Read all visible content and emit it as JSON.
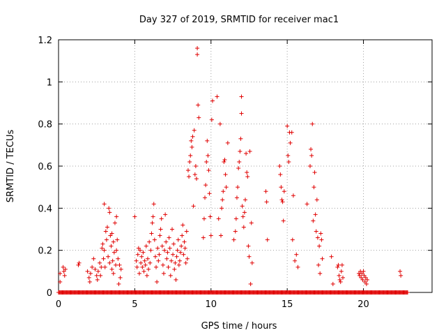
{
  "chart_data": {
    "type": "scatter",
    "title": "Day 327 of 2019, SRMTID for receiver mac1",
    "xlabel": "GPS time / hours",
    "ylabel": "SRMTID / TECUs",
    "xlim": [
      0,
      24.5
    ],
    "ylim": [
      0,
      1.2
    ],
    "x_ticks": [
      0,
      5,
      10,
      15,
      20
    ],
    "x_tick_labels": [
      "0",
      "5",
      "10",
      "15",
      "20"
    ],
    "y_ticks": [
      0,
      0.2,
      0.4,
      0.6,
      0.8,
      1.0,
      1.2
    ],
    "y_tick_labels": [
      "0",
      "0.2",
      "0.4",
      "0.6",
      "0.8",
      "1",
      "1.2"
    ],
    "grid": true,
    "marker": "plus",
    "color": "#e00000",
    "series": [
      {
        "name": "SRMTID",
        "points": [
          [
            0.1,
            0.05
          ],
          [
            0.1,
            0.09
          ],
          [
            0.3,
            0.12
          ],
          [
            0.35,
            0.1
          ],
          [
            0.4,
            0.08
          ],
          [
            0.45,
            0.11
          ],
          [
            1.3,
            0.13
          ],
          [
            1.35,
            0.14
          ],
          [
            1.9,
            0.1
          ],
          [
            2.0,
            0.07
          ],
          [
            2.05,
            0.05
          ],
          [
            2.1,
            0.09
          ],
          [
            2.2,
            0.12
          ],
          [
            2.3,
            0.16
          ],
          [
            2.4,
            0.11
          ],
          [
            2.5,
            0.08
          ],
          [
            2.55,
            0.06
          ],
          [
            2.6,
            0.1
          ],
          [
            2.7,
            0.14
          ],
          [
            2.75,
            0.08
          ],
          [
            2.8,
            0.12
          ],
          [
            2.85,
            0.21
          ],
          [
            2.9,
            0.23
          ],
          [
            2.95,
            0.16
          ],
          [
            3.0,
            0.42
          ],
          [
            3.0,
            0.2
          ],
          [
            3.05,
            0.12
          ],
          [
            3.1,
            0.29
          ],
          [
            3.15,
            0.25
          ],
          [
            3.2,
            0.31
          ],
          [
            3.25,
            0.17
          ],
          [
            3.3,
            0.4
          ],
          [
            3.35,
            0.38
          ],
          [
            3.35,
            0.14
          ],
          [
            3.4,
            0.27
          ],
          [
            3.45,
            0.22
          ],
          [
            3.5,
            0.11
          ],
          [
            3.5,
            0.28
          ],
          [
            3.55,
            0.15
          ],
          [
            3.6,
            0.24
          ],
          [
            3.6,
            0.09
          ],
          [
            3.65,
            0.19
          ],
          [
            3.7,
            0.33
          ],
          [
            3.75,
            0.13
          ],
          [
            3.8,
            0.2
          ],
          [
            3.8,
            0.36
          ],
          [
            3.85,
            0.25
          ],
          [
            3.9,
            0.16
          ],
          [
            3.95,
            0.04
          ],
          [
            4.0,
            0.13
          ],
          [
            4.05,
            0.07
          ],
          [
            4.1,
            0.11
          ],
          [
            5.0,
            0.36
          ],
          [
            5.1,
            0.15
          ],
          [
            5.15,
            0.12
          ],
          [
            5.2,
            0.18
          ],
          [
            5.25,
            0.21
          ],
          [
            5.3,
            0.09
          ],
          [
            5.35,
            0.2
          ],
          [
            5.4,
            0.14
          ],
          [
            5.45,
            0.17
          ],
          [
            5.5,
            0.12
          ],
          [
            5.55,
            0.19
          ],
          [
            5.6,
            0.1
          ],
          [
            5.65,
            0.15
          ],
          [
            5.7,
            0.13
          ],
          [
            5.75,
            0.22
          ],
          [
            5.8,
            0.08
          ],
          [
            5.85,
            0.16
          ],
          [
            5.9,
            0.11
          ],
          [
            5.95,
            0.24
          ],
          [
            6.0,
            0.14
          ],
          [
            6.05,
            0.2
          ],
          [
            6.1,
            0.28
          ],
          [
            6.15,
            0.33
          ],
          [
            6.2,
            0.36
          ],
          [
            6.25,
            0.42
          ],
          [
            6.3,
            0.25
          ],
          [
            6.35,
            0.17
          ],
          [
            6.4,
            0.12
          ],
          [
            6.45,
            0.05
          ],
          [
            6.5,
            0.21
          ],
          [
            6.55,
            0.15
          ],
          [
            6.6,
            0.18
          ],
          [
            6.65,
            0.27
          ],
          [
            6.7,
            0.3
          ],
          [
            6.75,
            0.35
          ],
          [
            6.8,
            0.22
          ],
          [
            6.85,
            0.13
          ],
          [
            6.9,
            0.09
          ],
          [
            6.95,
            0.2
          ],
          [
            7.0,
            0.37
          ],
          [
            7.05,
            0.24
          ],
          [
            7.1,
            0.16
          ],
          [
            7.15,
            0.19
          ],
          [
            7.2,
            0.12
          ],
          [
            7.25,
            0.26
          ],
          [
            7.3,
            0.21
          ],
          [
            7.35,
            0.08
          ],
          [
            7.4,
            0.15
          ],
          [
            7.45,
            0.3
          ],
          [
            7.5,
            0.18
          ],
          [
            7.55,
            0.23
          ],
          [
            7.6,
            0.11
          ],
          [
            7.65,
            0.14
          ],
          [
            7.7,
            0.06
          ],
          [
            7.75,
            0.17
          ],
          [
            7.8,
            0.2
          ],
          [
            7.85,
            0.25
          ],
          [
            7.9,
            0.13
          ],
          [
            7.95,
            0.15
          ],
          [
            8.0,
            0.19
          ],
          [
            8.05,
            0.22
          ],
          [
            8.1,
            0.27
          ],
          [
            8.15,
            0.32
          ],
          [
            8.2,
            0.18
          ],
          [
            8.25,
            0.24
          ],
          [
            8.3,
            0.21
          ],
          [
            8.35,
            0.14
          ],
          [
            8.4,
            0.29
          ],
          [
            8.45,
            0.16
          ],
          [
            8.5,
            0.58
          ],
          [
            8.55,
            0.55
          ],
          [
            8.6,
            0.62
          ],
          [
            8.65,
            0.65
          ],
          [
            8.7,
            0.72
          ],
          [
            8.75,
            0.69
          ],
          [
            8.8,
            0.74
          ],
          [
            8.85,
            0.41
          ],
          [
            8.9,
            0.77
          ],
          [
            8.95,
            0.56
          ],
          [
            9.0,
            0.6
          ],
          [
            9.05,
            0.54
          ],
          [
            9.1,
            1.16
          ],
          [
            9.1,
            1.13
          ],
          [
            9.15,
            0.89
          ],
          [
            9.2,
            0.83
          ],
          [
            9.5,
            0.26
          ],
          [
            9.55,
            0.35
          ],
          [
            9.6,
            0.45
          ],
          [
            9.65,
            0.51
          ],
          [
            9.7,
            0.62
          ],
          [
            9.75,
            0.72
          ],
          [
            9.8,
            0.65
          ],
          [
            9.85,
            0.58
          ],
          [
            9.9,
            0.47
          ],
          [
            9.95,
            0.36
          ],
          [
            10.0,
            0.27
          ],
          [
            10.05,
            0.82
          ],
          [
            10.1,
            0.91
          ],
          [
            10.4,
            0.93
          ],
          [
            10.5,
            0.35
          ],
          [
            10.6,
            0.8
          ],
          [
            10.65,
            0.27
          ],
          [
            10.7,
            0.4
          ],
          [
            10.75,
            0.44
          ],
          [
            10.8,
            0.48
          ],
          [
            10.85,
            0.62
          ],
          [
            10.9,
            0.63
          ],
          [
            10.95,
            0.56
          ],
          [
            11.0,
            0.5
          ],
          [
            11.1,
            0.71
          ],
          [
            11.5,
            0.25
          ],
          [
            11.6,
            0.29
          ],
          [
            11.65,
            0.35
          ],
          [
            11.7,
            0.45
          ],
          [
            11.75,
            0.5
          ],
          [
            11.8,
            0.59
          ],
          [
            11.85,
            0.62
          ],
          [
            11.9,
            0.67
          ],
          [
            11.95,
            0.73
          ],
          [
            12.0,
            0.85
          ],
          [
            12.0,
            0.93
          ],
          [
            12.05,
            0.41
          ],
          [
            12.1,
            0.36
          ],
          [
            12.15,
            0.31
          ],
          [
            12.2,
            0.38
          ],
          [
            12.25,
            0.44
          ],
          [
            12.3,
            0.66
          ],
          [
            12.35,
            0.57
          ],
          [
            12.4,
            0.55
          ],
          [
            12.45,
            0.22
          ],
          [
            12.5,
            0.17
          ],
          [
            12.55,
            0.67
          ],
          [
            12.6,
            0.04
          ],
          [
            12.65,
            0.33
          ],
          [
            12.7,
            0.14
          ],
          [
            13.6,
            0.48
          ],
          [
            13.65,
            0.43
          ],
          [
            13.7,
            0.25
          ],
          [
            14.5,
            0.6
          ],
          [
            14.55,
            0.56
          ],
          [
            14.6,
            0.5
          ],
          [
            14.65,
            0.44
          ],
          [
            14.7,
            0.43
          ],
          [
            14.75,
            0.34
          ],
          [
            14.8,
            0.48
          ],
          [
            15.0,
            0.79
          ],
          [
            15.05,
            0.65
          ],
          [
            15.1,
            0.62
          ],
          [
            15.15,
            0.76
          ],
          [
            15.2,
            0.71
          ],
          [
            15.3,
            0.76
          ],
          [
            15.35,
            0.25
          ],
          [
            15.4,
            0.46
          ],
          [
            15.5,
            0.15
          ],
          [
            15.6,
            0.18
          ],
          [
            15.7,
            0.12
          ],
          [
            16.3,
            0.42
          ],
          [
            16.5,
            0.6
          ],
          [
            16.55,
            0.68
          ],
          [
            16.6,
            0.65
          ],
          [
            16.65,
            0.8
          ],
          [
            16.7,
            0.34
          ],
          [
            16.75,
            0.5
          ],
          [
            16.8,
            0.57
          ],
          [
            16.85,
            0.37
          ],
          [
            16.9,
            0.29
          ],
          [
            16.95,
            0.44
          ],
          [
            17.0,
            0.26
          ],
          [
            17.05,
            0.13
          ],
          [
            17.1,
            0.22
          ],
          [
            17.15,
            0.09
          ],
          [
            17.2,
            0.28
          ],
          [
            17.25,
            0.25
          ],
          [
            17.3,
            0.16
          ],
          [
            17.9,
            0.17
          ],
          [
            18.0,
            0.04
          ],
          [
            18.3,
            0.12
          ],
          [
            18.35,
            0.13
          ],
          [
            18.4,
            0.08
          ],
          [
            18.45,
            0.06
          ],
          [
            18.5,
            0.05
          ],
          [
            18.55,
            0.1
          ],
          [
            18.6,
            0.13
          ],
          [
            18.65,
            0.07
          ],
          [
            19.7,
            0.09
          ],
          [
            19.75,
            0.08
          ],
          [
            19.8,
            0.1
          ],
          [
            19.85,
            0.07
          ],
          [
            19.9,
            0.09
          ],
          [
            19.95,
            0.06
          ],
          [
            20.0,
            0.1
          ],
          [
            20.05,
            0.08
          ],
          [
            20.1,
            0.05
          ],
          [
            20.15,
            0.07
          ],
          [
            20.2,
            0.04
          ],
          [
            20.25,
            0.06
          ],
          [
            22.4,
            0.1
          ],
          [
            22.45,
            0.08
          ]
        ]
      }
    ],
    "baseline_zero_ranges": [
      [
        0.0,
        22.9
      ]
    ]
  }
}
